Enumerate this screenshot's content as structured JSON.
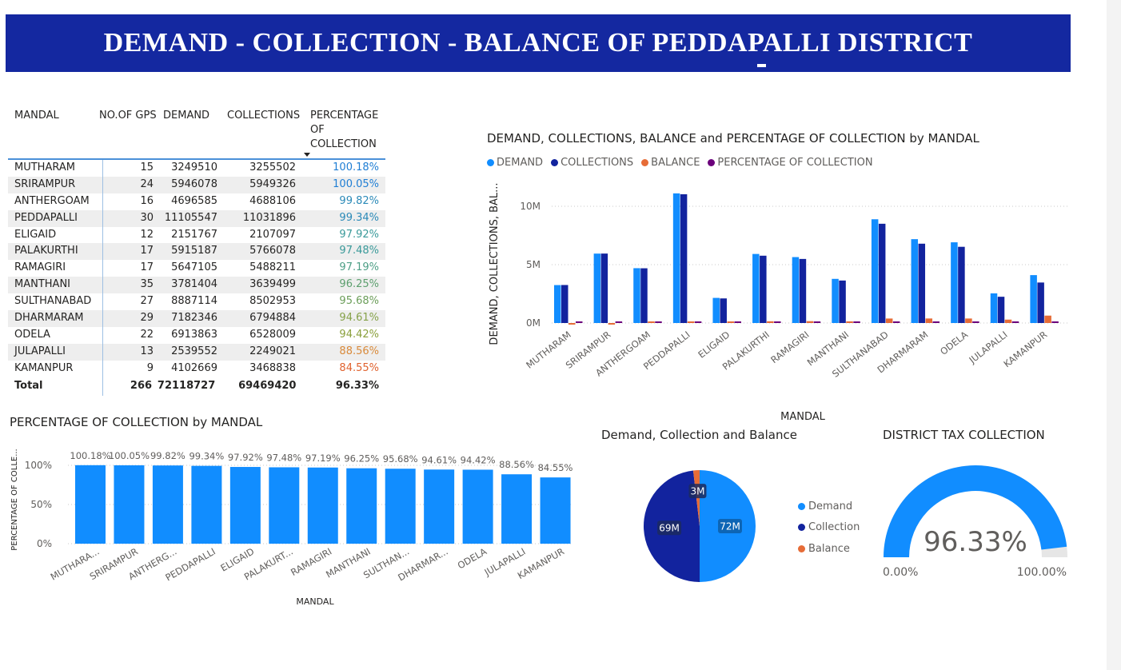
{
  "banner": {
    "title": "DEMAND - COLLECTION - BALANCE OF PEDDAPALLI DISTRICT"
  },
  "colors": {
    "demand": "#118dff",
    "collections": "#12239e",
    "balance": "#e66c37",
    "percentage": "#6b007b",
    "banner": "#1428a0"
  },
  "table": {
    "headers": [
      "MANDAL",
      "NO.OF GPS",
      "DEMAND",
      "COLLECTIONS",
      "PERCENTAGE OF COLLECTION"
    ],
    "rows": [
      {
        "mandal": "MUTHARAM",
        "gps": "15",
        "demand": "3249510",
        "collections": "3255502",
        "pct": "100.18%",
        "color": "#1f7ed4"
      },
      {
        "mandal": "SRIRAMPUR",
        "gps": "24",
        "demand": "5946078",
        "collections": "5949326",
        "pct": "100.05%",
        "color": "#1f7ed4"
      },
      {
        "mandal": "ANTHERGOAM",
        "gps": "16",
        "demand": "4696585",
        "collections": "4688106",
        "pct": "99.82%",
        "color": "#2b8ab8"
      },
      {
        "mandal": "PEDDAPALLI",
        "gps": "30",
        "demand": "11105547",
        "collections": "11031896",
        "pct": "99.34%",
        "color": "#2b8ab8"
      },
      {
        "mandal": "ELIGAID",
        "gps": "12",
        "demand": "2151767",
        "collections": "2107097",
        "pct": "97.92%",
        "color": "#3a9a9a"
      },
      {
        "mandal": "PALAKURTHI",
        "gps": "17",
        "demand": "5915187",
        "collections": "5766078",
        "pct": "97.48%",
        "color": "#3a9a9a"
      },
      {
        "mandal": "RAMAGIRI",
        "gps": "17",
        "demand": "5647105",
        "collections": "5488211",
        "pct": "97.19%",
        "color": "#4e9f86"
      },
      {
        "mandal": "MANTHANI",
        "gps": "35",
        "demand": "3781404",
        "collections": "3639499",
        "pct": "96.25%",
        "color": "#5c9f6e"
      },
      {
        "mandal": "SULTHANABAD",
        "gps": "27",
        "demand": "8887114",
        "collections": "8502953",
        "pct": "95.68%",
        "color": "#6c9e5a"
      },
      {
        "mandal": "DHARMARAM",
        "gps": "29",
        "demand": "7182346",
        "collections": "6794884",
        "pct": "94.61%",
        "color": "#86a24a"
      },
      {
        "mandal": "ODELA",
        "gps": "22",
        "demand": "6913863",
        "collections": "6528009",
        "pct": "94.42%",
        "color": "#8aa03c"
      },
      {
        "mandal": "JULAPALLI",
        "gps": "13",
        "demand": "2539552",
        "collections": "2249021",
        "pct": "88.56%",
        "color": "#d98a3a"
      },
      {
        "mandal": "KAMANPUR",
        "gps": "9",
        "demand": "4102669",
        "collections": "3468838",
        "pct": "84.55%",
        "color": "#e0622e"
      }
    ],
    "total": {
      "label": "Total",
      "gps": "266",
      "demand": "72118727",
      "collections": "69469420",
      "pct": "96.33%"
    }
  },
  "chart_data": [
    {
      "type": "bar",
      "title": "DEMAND, COLLECTIONS, BALANCE and PERCENTAGE OF COLLECTION by MANDAL",
      "xlabel": "MANDAL",
      "ylabel": "DEMAND, COLLECTIONS, BAL...",
      "ylim": [
        0,
        12000000
      ],
      "yticks": [
        "0M",
        "5M",
        "10M"
      ],
      "legend_position": "top-left",
      "grid": true,
      "categories": [
        "MUTHARAM",
        "SRIRAMPUR",
        "ANTHERGOAM",
        "PEDDAPALLI",
        "ELIGAID",
        "PALAKURTHI",
        "RAMAGIRI",
        "MANTHANI",
        "SULTHANABAD",
        "DHARMARAM",
        "ODELA",
        "JULAPALLI",
        "KAMANPUR"
      ],
      "series": [
        {
          "name": "DEMAND",
          "values": [
            3249510,
            5946078,
            4696585,
            11105547,
            2151767,
            5915187,
            5647105,
            3781404,
            8887114,
            7182346,
            6913863,
            2539552,
            4102669
          ]
        },
        {
          "name": "COLLECTIONS",
          "values": [
            3255502,
            5949326,
            4688106,
            11031896,
            2107097,
            5766078,
            5488211,
            3639499,
            8502953,
            6794884,
            6528009,
            2249021,
            3468838
          ]
        },
        {
          "name": "BALANCE",
          "values": [
            -5992,
            -3248,
            8479,
            73651,
            44670,
            149109,
            158894,
            141905,
            384161,
            387462,
            385854,
            290531,
            633831
          ]
        },
        {
          "name": "PERCENTAGE OF COLLECTION",
          "values": [
            1.0018,
            1.0005,
            0.9982,
            0.9934,
            0.9792,
            0.9748,
            0.9719,
            0.9625,
            0.9568,
            0.9461,
            0.9442,
            0.8856,
            0.8455
          ]
        }
      ]
    },
    {
      "type": "bar",
      "title": "PERCENTAGE OF COLLECTION by MANDAL",
      "xlabel": "MANDAL",
      "ylabel": "PERCENTAGE OF COLLE...",
      "ylim": [
        0,
        100
      ],
      "yticks": [
        "0%",
        "50%",
        "100%"
      ],
      "grid": true,
      "categories": [
        "MUTHARAM",
        "SRIRAMPUR",
        "ANTHERGOAM",
        "PEDDAPALLI",
        "ELIGAID",
        "PALAKURTHI",
        "RAMAGIRI",
        "MANTHANI",
        "SULTHANABAD",
        "DHARMARAM",
        "ODELA",
        "JULAPALLI",
        "KAMANPUR"
      ],
      "category_labels": [
        "MUTHARA...",
        "SRIRAMPUR",
        "ANTHERG...",
        "PEDDAPALLI",
        "ELIGAID",
        "PALAKURT...",
        "RAMAGIRI",
        "MANTHANI",
        "SULTHAN...",
        "DHARMAR...",
        "ODELA",
        "JULAPALLI",
        "KAMANPUR"
      ],
      "values": [
        100.18,
        100.05,
        99.82,
        99.34,
        97.92,
        97.48,
        97.19,
        96.25,
        95.68,
        94.61,
        94.42,
        88.56,
        84.55
      ],
      "data_labels": [
        "100.18%",
        "100.05%",
        "99.82%",
        "99.34%",
        "97.92%",
        "97.48%",
        "97.19%",
        "96.25%",
        "95.68%",
        "94.61%",
        "94.42%",
        "88.56%",
        "84.55%"
      ]
    },
    {
      "type": "pie",
      "title": "Demand, Collection and Balance",
      "legend_position": "right",
      "labels": [
        "Demand",
        "Collection",
        "Balance"
      ],
      "values": [
        72118727,
        69469420,
        2649307
      ],
      "data_labels": [
        "72M",
        "69M",
        "3M"
      ]
    },
    {
      "type": "gauge",
      "title": "DISTRICT TAX COLLECTION",
      "value": 96.33,
      "value_label": "96.33%",
      "min_label": "0.00%",
      "max_label": "100.00%",
      "range": [
        0,
        100
      ]
    }
  ]
}
